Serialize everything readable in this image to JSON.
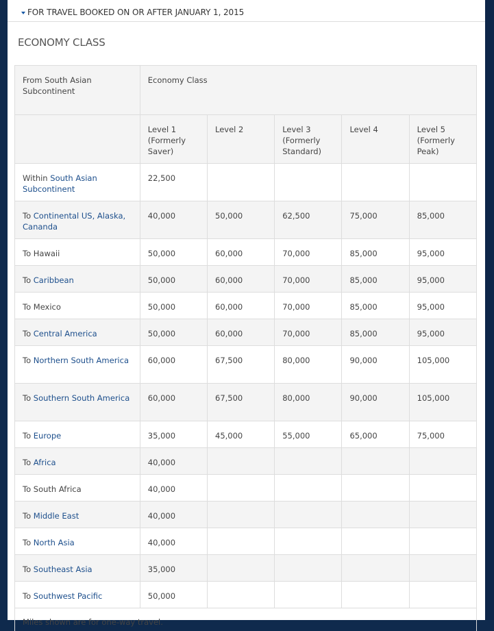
{
  "section": {
    "toggle_label": "FOR TRAVEL BOOKED ON OR AFTER JANUARY 1, 2015",
    "title": "ECONOMY CLASS"
  },
  "table": {
    "origin_header": "From South Asian Subcontinent",
    "class_header": "Economy Class",
    "levels": [
      "Level 1 (Formerly Saver)",
      "Level 2",
      "Level 3 (Formerly Standard)",
      "Level 4",
      "Level 5 (Formerly Peak)"
    ],
    "rows": [
      {
        "prefix": "Within",
        "dest": "South Asian Subcontinent",
        "linked": true,
        "values": [
          "22,500",
          "",
          "",
          "",
          ""
        ]
      },
      {
        "prefix": "To",
        "dest": "Continental US, Alaska, Cananda",
        "linked": true,
        "values": [
          "40,000",
          "50,000",
          "62,500",
          "75,000",
          "85,000"
        ]
      },
      {
        "prefix": "To",
        "dest": "Hawaii",
        "linked": false,
        "values": [
          "50,000",
          "60,000",
          "70,000",
          "85,000",
          "95,000"
        ]
      },
      {
        "prefix": "To",
        "dest": "Caribbean",
        "linked": true,
        "values": [
          "50,000",
          "60,000",
          "70,000",
          "85,000",
          "95,000"
        ]
      },
      {
        "prefix": "To",
        "dest": "Mexico",
        "linked": false,
        "values": [
          "50,000",
          "60,000",
          "70,000",
          "85,000",
          "95,000"
        ]
      },
      {
        "prefix": "To",
        "dest": "Central America",
        "linked": true,
        "values": [
          "50,000",
          "60,000",
          "70,000",
          "85,000",
          "95,000"
        ]
      },
      {
        "prefix": "To",
        "dest": "Northern South America",
        "linked": true,
        "values": [
          "60,000",
          "67,500",
          "80,000",
          "90,000",
          "105,000"
        ]
      },
      {
        "prefix": "To",
        "dest": "Southern South America",
        "linked": true,
        "values": [
          "60,000",
          "67,500",
          "80,000",
          "90,000",
          "105,000"
        ]
      },
      {
        "prefix": "To",
        "dest": "Europe",
        "linked": true,
        "values": [
          "35,000",
          "45,000",
          "55,000",
          "65,000",
          "75,000"
        ]
      },
      {
        "prefix": "To",
        "dest": "Africa",
        "linked": true,
        "values": [
          "40,000",
          "",
          "",
          "",
          ""
        ]
      },
      {
        "prefix": "To",
        "dest": "South Africa",
        "linked": false,
        "values": [
          "40,000",
          "",
          "",
          "",
          ""
        ]
      },
      {
        "prefix": "To",
        "dest": "Middle East",
        "linked": true,
        "values": [
          "40,000",
          "",
          "",
          "",
          ""
        ]
      },
      {
        "prefix": "To",
        "dest": "North Asia",
        "linked": true,
        "values": [
          "40,000",
          "",
          "",
          "",
          ""
        ]
      },
      {
        "prefix": "To",
        "dest": "Southeast Asia",
        "linked": true,
        "values": [
          "35,000",
          "",
          "",
          "",
          ""
        ]
      },
      {
        "prefix": "To",
        "dest": "Southwest Pacific",
        "linked": true,
        "values": [
          "50,000",
          "",
          "",
          "",
          ""
        ]
      }
    ],
    "footnote": "Miles shown are for one-way travel."
  },
  "colors": {
    "link": "#1d4f8c",
    "frame": "#0f2a4d",
    "row_alt": "#f4f4f4"
  }
}
